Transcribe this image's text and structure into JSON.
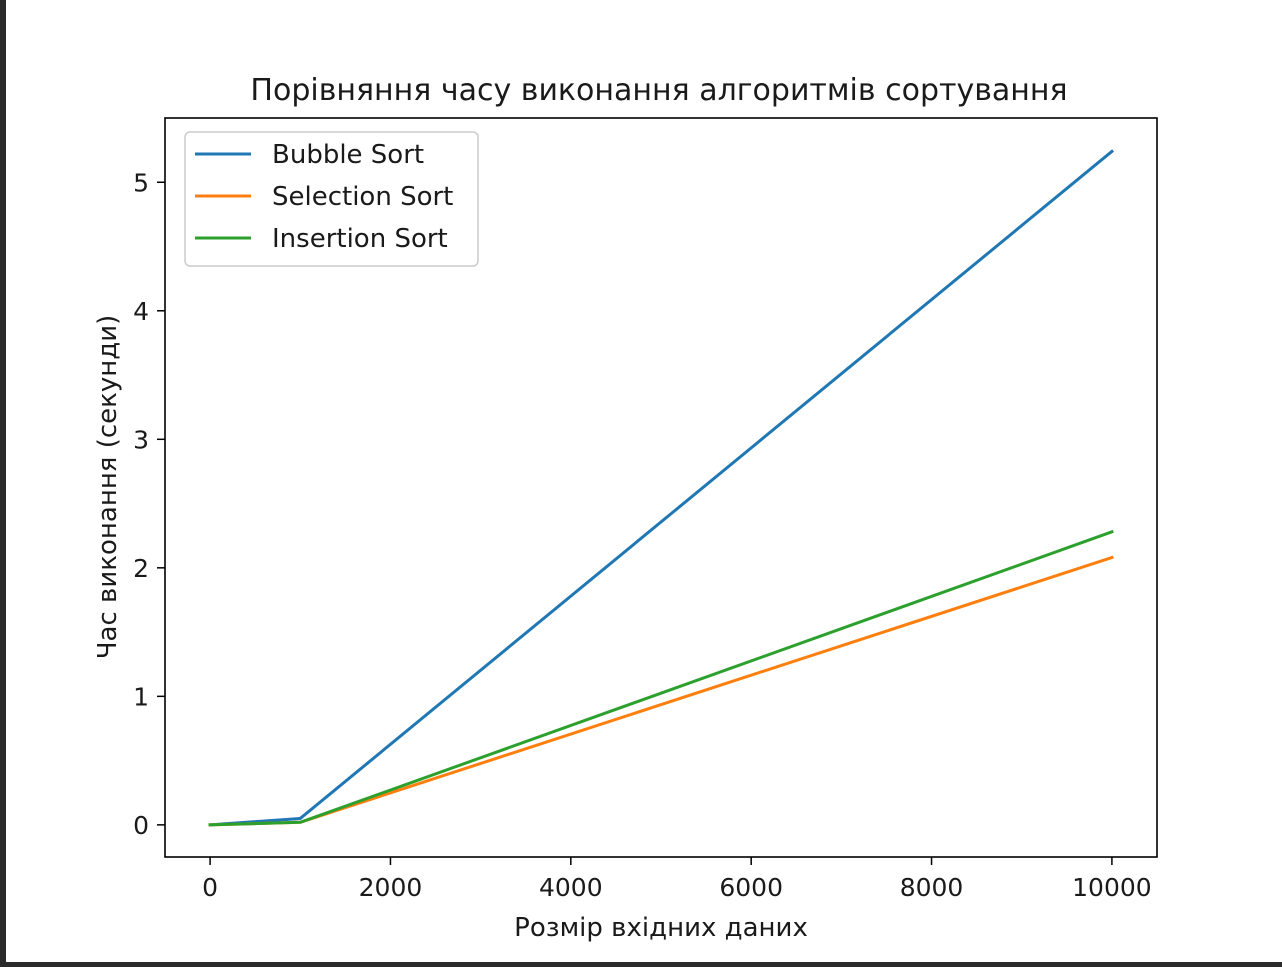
{
  "chart_data": {
    "type": "line",
    "title": "Порівняння часу виконання алгоритмів сортування",
    "xlabel": "Розмір вхідних даних",
    "ylabel": "Час виконання (секунди)",
    "xlim": [
      -500,
      10500
    ],
    "ylim": [
      -0.25,
      5.5
    ],
    "x_ticks": [
      0,
      2000,
      4000,
      6000,
      8000,
      10000
    ],
    "y_ticks": [
      0,
      1,
      2,
      3,
      4,
      5
    ],
    "grid": false,
    "legend_position": "top-left",
    "x": [
      0,
      1000,
      10000
    ],
    "series": [
      {
        "name": "Bubble Sort",
        "color": "#1f77b4",
        "values": [
          0.0,
          0.05,
          5.24
        ]
      },
      {
        "name": "Selection Sort",
        "color": "#ff7f0e",
        "values": [
          0.0,
          0.02,
          2.08
        ]
      },
      {
        "name": "Insertion Sort",
        "color": "#2ca02c",
        "values": [
          0.0,
          0.02,
          2.28
        ]
      }
    ]
  }
}
